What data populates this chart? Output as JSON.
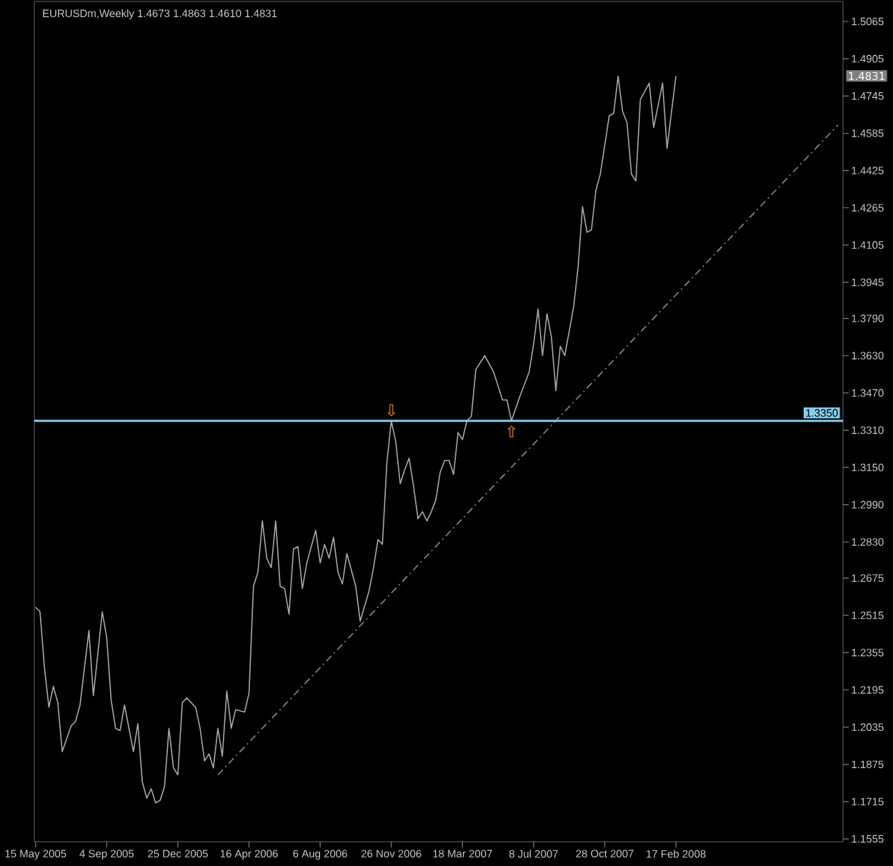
{
  "chart_data": {
    "type": "line",
    "title": "EURUSDm,Weekly 1.4673 1.4863 1.4610 1.4831",
    "x": [
      "2005-05-15",
      "2005-05-22",
      "2005-05-29",
      "2005-06-05",
      "2005-06-12",
      "2005-06-19",
      "2005-06-26",
      "2005-07-10",
      "2005-07-17",
      "2005-07-24",
      "2005-08-07",
      "2005-08-14",
      "2005-08-28",
      "2005-09-04",
      "2005-09-11",
      "2005-09-18",
      "2005-09-25",
      "2005-10-02",
      "2005-10-16",
      "2005-10-23",
      "2005-10-30",
      "2005-11-06",
      "2005-11-13",
      "2005-11-20",
      "2005-11-27",
      "2005-12-04",
      "2005-12-11",
      "2005-12-18",
      "2005-12-25",
      "2006-01-01",
      "2006-01-08",
      "2006-01-22",
      "2006-01-29",
      "2006-02-05",
      "2006-02-12",
      "2006-02-19",
      "2006-02-26",
      "2006-03-05",
      "2006-03-12",
      "2006-03-19",
      "2006-03-26",
      "2006-04-09",
      "2006-04-16",
      "2006-04-23",
      "2006-04-30",
      "2006-05-07",
      "2006-05-14",
      "2006-05-21",
      "2006-05-28",
      "2006-06-04",
      "2006-06-11",
      "2006-06-18",
      "2006-06-25",
      "2006-07-02",
      "2006-07-09",
      "2006-07-16",
      "2006-07-30",
      "2006-08-06",
      "2006-08-13",
      "2006-08-20",
      "2006-08-27",
      "2006-09-03",
      "2006-09-10",
      "2006-09-17",
      "2006-10-01",
      "2006-10-08",
      "2006-10-22",
      "2006-10-29",
      "2006-11-05",
      "2006-11-12",
      "2006-11-19",
      "2006-11-26",
      "2006-12-03",
      "2006-12-10",
      "2006-12-17",
      "2006-12-24",
      "2006-12-31",
      "2007-01-07",
      "2007-01-14",
      "2007-01-21",
      "2007-01-28",
      "2007-02-04",
      "2007-02-11",
      "2007-02-18",
      "2007-02-25",
      "2007-03-04",
      "2007-03-11",
      "2007-03-18",
      "2007-03-25",
      "2007-04-01",
      "2007-04-08",
      "2007-04-22",
      "2007-05-06",
      "2007-05-13",
      "2007-05-20",
      "2007-05-27",
      "2007-06-03",
      "2007-06-17",
      "2007-07-01",
      "2007-07-08",
      "2007-07-15",
      "2007-07-22",
      "2007-07-29",
      "2007-08-05",
      "2007-08-12",
      "2007-08-19",
      "2007-08-26",
      "2007-09-09",
      "2007-09-16",
      "2007-09-23",
      "2007-09-30",
      "2007-10-07",
      "2007-10-14",
      "2007-10-21",
      "2007-11-04",
      "2007-11-11",
      "2007-11-18",
      "2007-11-25",
      "2007-12-02",
      "2007-12-09",
      "2007-12-16",
      "2007-12-23",
      "2008-01-06",
      "2008-01-13",
      "2008-01-27",
      "2008-02-03",
      "2008-02-17"
    ],
    "series": [
      {
        "color": "#a9a9a9",
        "values": [
          1.255,
          1.253,
          1.229,
          1.212,
          1.221,
          1.214,
          1.193,
          1.204,
          1.206,
          1.213,
          1.245,
          1.217,
          1.253,
          1.242,
          1.215,
          1.203,
          1.202,
          1.213,
          1.193,
          1.205,
          1.18,
          1.173,
          1.177,
          1.171,
          1.172,
          1.178,
          1.203,
          1.186,
          1.183,
          1.214,
          1.216,
          1.212,
          1.203,
          1.189,
          1.192,
          1.186,
          1.203,
          1.191,
          1.219,
          1.203,
          1.211,
          1.21,
          1.218,
          1.264,
          1.27,
          1.292,
          1.276,
          1.272,
          1.292,
          1.264,
          1.263,
          1.252,
          1.28,
          1.281,
          1.263,
          1.274,
          1.288,
          1.274,
          1.282,
          1.276,
          1.285,
          1.27,
          1.265,
          1.278,
          1.264,
          1.249,
          1.262,
          1.272,
          1.284,
          1.282,
          1.317,
          1.335,
          1.326,
          1.308,
          1.314,
          1.319,
          1.307,
          1.293,
          1.296,
          1.292,
          1.296,
          1.301,
          1.313,
          1.318,
          1.318,
          1.312,
          1.33,
          1.327,
          1.335,
          1.337,
          1.357,
          1.363,
          1.356,
          1.35,
          1.344,
          1.344,
          1.335,
          1.346,
          1.356,
          1.368,
          1.383,
          1.363,
          1.381,
          1.371,
          1.348,
          1.367,
          1.363,
          1.384,
          1.401,
          1.427,
          1.416,
          1.417,
          1.434,
          1.441,
          1.466,
          1.467,
          1.483,
          1.468,
          1.463,
          1.441,
          1.438,
          1.473,
          1.48,
          1.461,
          1.48,
          1.452,
          1.4831
        ]
      },
      {
        "type": "line",
        "x": [
          "2006-02-26",
          "2008-10-29"
        ],
        "values": [
          1.183,
          1.462
        ],
        "color": "#8c8c8c",
        "line_style": "dashed"
      }
    ],
    "xlim": [
      "2005-05-13",
      "2008-11-06"
    ],
    "xticks": [
      {
        "value": "2005-05-15",
        "label": "15 May 2005"
      },
      {
        "value": "2005-09-04",
        "label": "4 Sep 2005"
      },
      {
        "value": "2005-12-25",
        "label": "25 Dec 2005"
      },
      {
        "value": "2006-04-16",
        "label": "16 Apr 2006"
      },
      {
        "value": "2006-08-06",
        "label": "6 Aug 2006"
      },
      {
        "value": "2006-11-26",
        "label": "26 Nov 2006"
      },
      {
        "value": "2007-03-18",
        "label": "18 Mar 2007"
      },
      {
        "value": "2007-07-08",
        "label": "8 Jul 2007"
      },
      {
        "value": "2007-10-28",
        "label": "28 Oct 2007"
      },
      {
        "value": "2008-02-17",
        "label": "17 Feb 2008"
      }
    ],
    "ylim": [
      1.1543,
      1.5151
    ],
    "yticks": [
      1.1555,
      1.1715,
      1.1875,
      1.2035,
      1.2195,
      1.2355,
      1.2515,
      1.2675,
      {
        "value": 1.283,
        "label": "1.2830"
      },
      {
        "value": 1.299,
        "label": "1.2990"
      },
      {
        "value": 1.315,
        "label": "1.3150"
      },
      {
        "value": 1.331,
        "label": "1.3310"
      },
      {
        "value": 1.347,
        "label": "1.3470"
      },
      {
        "value": 1.363,
        "label": "1.3630"
      },
      {
        "value": 1.379,
        "label": "1.3790"
      },
      1.3945,
      1.4105,
      1.4265,
      1.4425,
      1.4585,
      1.4745,
      1.4905,
      1.5065
    ],
    "ref_lines": [
      {
        "axis": "y",
        "value": 1.335,
        "label": "1.3350",
        "color": "#87ceeb"
      }
    ],
    "annotations": [
      "1.4831",
      {
        "text": "⇩",
        "x": "2006-11-26",
        "y": 1.335
      },
      {
        "text": "⇧",
        "x": "2007-06-03",
        "y": 1.335
      }
    ]
  }
}
